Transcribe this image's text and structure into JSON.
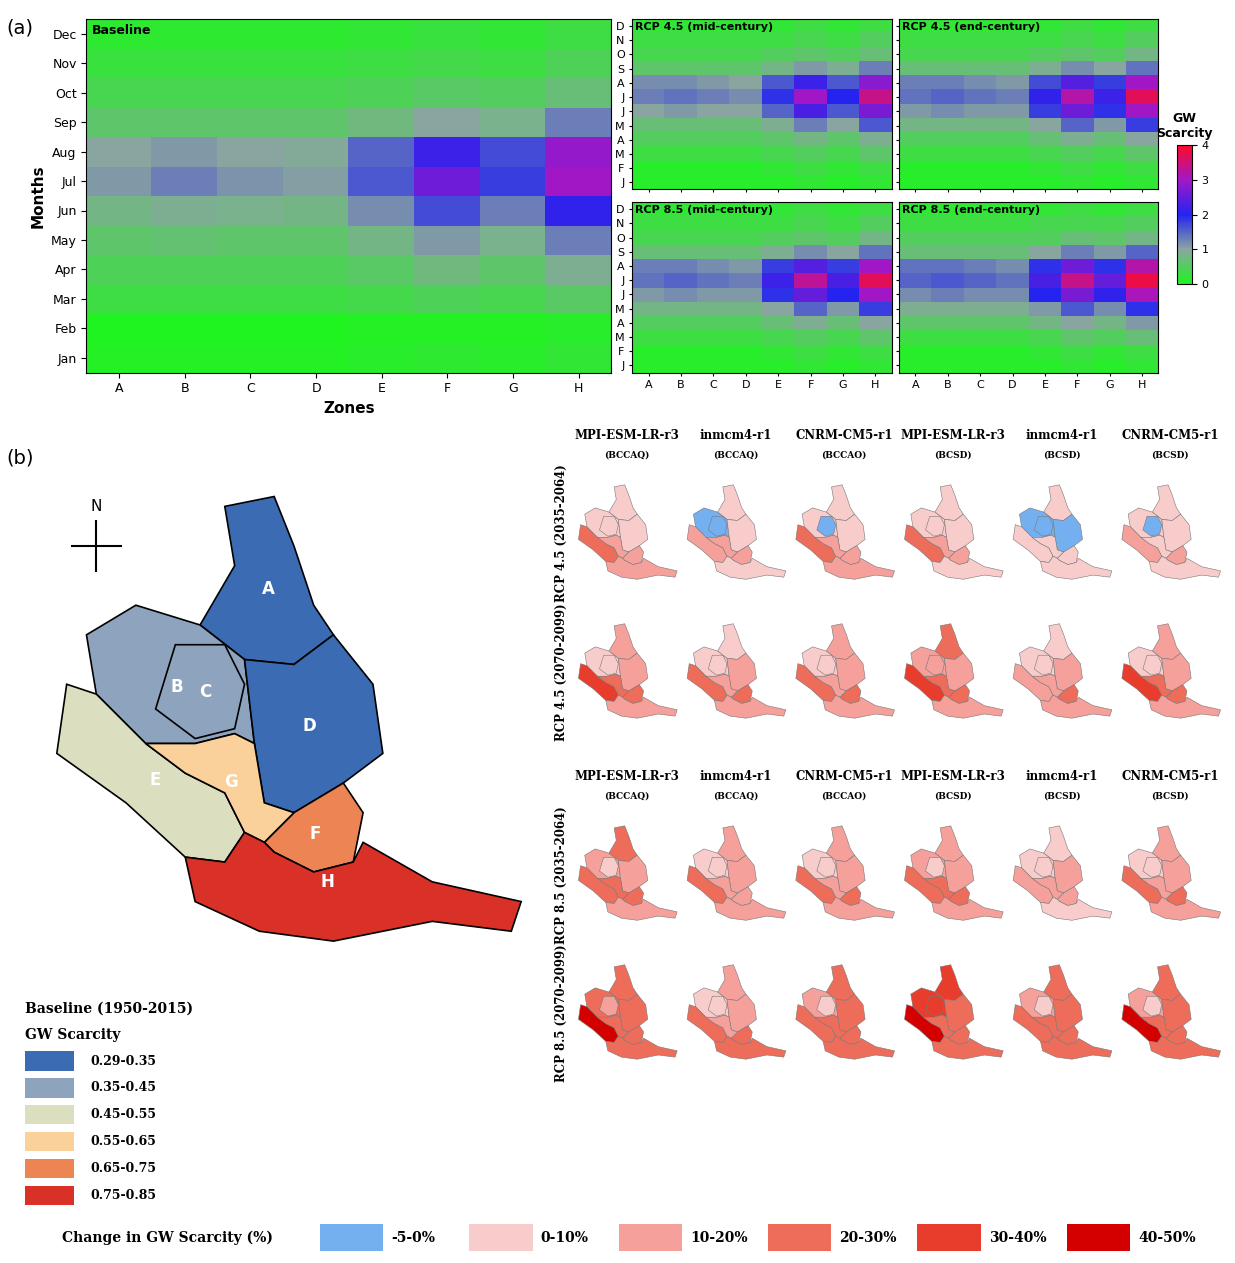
{
  "panel_labels": [
    "(a)",
    "(b)"
  ],
  "chart_data": {
    "type": "heatmap",
    "colorbar": {
      "label": "GW\nScarcity",
      "range": [
        0,
        4
      ],
      "ticks": [
        0,
        1,
        2,
        3,
        4
      ]
    },
    "baseline": {
      "title": "Baseline",
      "xlabel": "Zones",
      "ylabel": "Months",
      "x_categories": [
        "A",
        "B",
        "C",
        "D",
        "E",
        "F",
        "G",
        "H"
      ],
      "y_categories": [
        "Jan",
        "Feb",
        "Mar",
        "Apr",
        "May",
        "Jun",
        "Jul",
        "Aug",
        "Sep",
        "Oct",
        "Nov",
        "Dec"
      ],
      "cells": [
        [
          0.05,
          0.05,
          0.05,
          0.05,
          0.1,
          0.15,
          0.1,
          0.2
        ],
        [
          0.02,
          0.02,
          0.02,
          0.02,
          0.05,
          0.05,
          0.05,
          0.1
        ],
        [
          0.3,
          0.3,
          0.3,
          0.3,
          0.35,
          0.45,
          0.4,
          0.55
        ],
        [
          0.45,
          0.45,
          0.45,
          0.45,
          0.55,
          0.75,
          0.6,
          0.9
        ],
        [
          0.6,
          0.65,
          0.6,
          0.6,
          0.8,
          1.1,
          0.85,
          1.3
        ],
        [
          0.8,
          0.9,
          0.85,
          0.8,
          1.2,
          1.7,
          1.3,
          2.1
        ],
        [
          1.1,
          1.3,
          1.15,
          1.05,
          1.6,
          2.6,
          1.8,
          3.0
        ],
        [
          1.0,
          1.1,
          1.0,
          0.95,
          1.5,
          2.2,
          1.7,
          2.9
        ],
        [
          0.6,
          0.6,
          0.6,
          0.6,
          0.75,
          1.0,
          0.85,
          1.3
        ],
        [
          0.4,
          0.4,
          0.4,
          0.4,
          0.45,
          0.55,
          0.5,
          0.7
        ],
        [
          0.25,
          0.25,
          0.25,
          0.25,
          0.3,
          0.35,
          0.3,
          0.45
        ],
        [
          0.15,
          0.15,
          0.15,
          0.15,
          0.2,
          0.25,
          0.2,
          0.3
        ]
      ]
    },
    "scenario_y_categories": [
      "J",
      "F",
      "M",
      "A",
      "M",
      "J",
      "J",
      "A",
      "S",
      "O",
      "N",
      "D"
    ],
    "scenario_x_categories": [
      "A",
      "B",
      "C",
      "D",
      "E",
      "F",
      "G",
      "H"
    ],
    "scenarios": [
      {
        "title": "RCP 4.5 (mid-century)",
        "cells": [
          [
            0.1,
            0.1,
            0.1,
            0.1,
            0.1,
            0.2,
            0.1,
            0.2
          ],
          [
            0.1,
            0.1,
            0.1,
            0.1,
            0.2,
            0.3,
            0.2,
            0.3
          ],
          [
            0.3,
            0.3,
            0.3,
            0.3,
            0.4,
            0.5,
            0.4,
            0.6
          ],
          [
            0.5,
            0.5,
            0.5,
            0.5,
            0.6,
            0.8,
            0.6,
            0.9
          ],
          [
            0.7,
            0.7,
            0.7,
            0.7,
            0.9,
            1.3,
            1.0,
            1.6
          ],
          [
            1.0,
            1.1,
            1.0,
            1.0,
            1.5,
            2.3,
            1.6,
            2.7
          ],
          [
            1.3,
            1.4,
            1.3,
            1.2,
            1.9,
            3.0,
            2.0,
            3.4
          ],
          [
            1.2,
            1.2,
            1.1,
            1.0,
            1.6,
            2.2,
            1.6,
            2.8
          ],
          [
            0.6,
            0.6,
            0.6,
            0.6,
            0.8,
            1.1,
            0.9,
            1.3
          ],
          [
            0.4,
            0.4,
            0.4,
            0.4,
            0.5,
            0.6,
            0.5,
            0.7
          ],
          [
            0.3,
            0.3,
            0.3,
            0.3,
            0.3,
            0.4,
            0.3,
            0.5
          ],
          [
            0.2,
            0.2,
            0.2,
            0.2,
            0.2,
            0.3,
            0.2,
            0.3
          ]
        ]
      },
      {
        "title": "RCP 4.5 (end-century)",
        "cells": [
          [
            0.1,
            0.1,
            0.1,
            0.1,
            0.1,
            0.2,
            0.1,
            0.2
          ],
          [
            0.1,
            0.1,
            0.1,
            0.1,
            0.2,
            0.3,
            0.2,
            0.3
          ],
          [
            0.3,
            0.3,
            0.3,
            0.3,
            0.4,
            0.5,
            0.4,
            0.6
          ],
          [
            0.5,
            0.5,
            0.5,
            0.5,
            0.7,
            0.9,
            0.7,
            1.0
          ],
          [
            0.8,
            0.8,
            0.8,
            0.8,
            1.0,
            1.5,
            1.1,
            1.8
          ],
          [
            1.1,
            1.2,
            1.1,
            1.1,
            1.8,
            2.6,
            1.9,
            3.0
          ],
          [
            1.4,
            1.5,
            1.4,
            1.3,
            2.1,
            3.2,
            2.2,
            3.7
          ],
          [
            1.3,
            1.3,
            1.2,
            1.1,
            1.7,
            2.4,
            1.8,
            3.0
          ],
          [
            0.7,
            0.7,
            0.7,
            0.7,
            0.9,
            1.2,
            1.0,
            1.4
          ],
          [
            0.4,
            0.4,
            0.4,
            0.4,
            0.5,
            0.6,
            0.5,
            0.8
          ],
          [
            0.3,
            0.3,
            0.3,
            0.3,
            0.3,
            0.4,
            0.3,
            0.5
          ],
          [
            0.2,
            0.2,
            0.2,
            0.2,
            0.2,
            0.3,
            0.2,
            0.3
          ]
        ]
      },
      {
        "title": "RCP 8.5 (mid-century)",
        "cells": [
          [
            0.1,
            0.1,
            0.1,
            0.1,
            0.1,
            0.2,
            0.1,
            0.2
          ],
          [
            0.1,
            0.1,
            0.1,
            0.1,
            0.2,
            0.3,
            0.2,
            0.3
          ],
          [
            0.3,
            0.3,
            0.3,
            0.3,
            0.4,
            0.5,
            0.4,
            0.6
          ],
          [
            0.5,
            0.5,
            0.5,
            0.5,
            0.7,
            0.9,
            0.7,
            1.0
          ],
          [
            0.8,
            0.8,
            0.8,
            0.8,
            1.0,
            1.5,
            1.1,
            1.8
          ],
          [
            1.1,
            1.2,
            1.1,
            1.1,
            1.9,
            2.5,
            2.0,
            3.0
          ],
          [
            1.4,
            1.5,
            1.4,
            1.3,
            2.2,
            3.3,
            2.3,
            3.7
          ],
          [
            1.3,
            1.3,
            1.2,
            1.1,
            1.8,
            2.4,
            1.8,
            3.0
          ],
          [
            0.7,
            0.7,
            0.7,
            0.7,
            0.9,
            1.2,
            1.0,
            1.4
          ],
          [
            0.4,
            0.4,
            0.4,
            0.4,
            0.5,
            0.6,
            0.5,
            0.8
          ],
          [
            0.3,
            0.3,
            0.3,
            0.3,
            0.3,
            0.4,
            0.3,
            0.5
          ],
          [
            0.2,
            0.2,
            0.2,
            0.2,
            0.2,
            0.3,
            0.2,
            0.3
          ]
        ]
      },
      {
        "title": "RCP 8.5 (end-century)",
        "cells": [
          [
            0.1,
            0.1,
            0.1,
            0.1,
            0.1,
            0.2,
            0.1,
            0.2
          ],
          [
            0.1,
            0.1,
            0.1,
            0.1,
            0.2,
            0.3,
            0.2,
            0.3
          ],
          [
            0.3,
            0.3,
            0.3,
            0.3,
            0.4,
            0.6,
            0.5,
            0.7
          ],
          [
            0.6,
            0.6,
            0.6,
            0.6,
            0.8,
            1.0,
            0.8,
            1.1
          ],
          [
            0.9,
            0.9,
            0.9,
            0.9,
            1.1,
            1.6,
            1.2,
            1.9
          ],
          [
            1.2,
            1.3,
            1.2,
            1.2,
            2.0,
            2.7,
            2.1,
            3.1
          ],
          [
            1.5,
            1.6,
            1.5,
            1.4,
            2.3,
            3.4,
            2.5,
            3.8
          ],
          [
            1.4,
            1.4,
            1.3,
            1.2,
            1.9,
            2.6,
            1.9,
            3.2
          ],
          [
            0.7,
            0.7,
            0.7,
            0.7,
            1.0,
            1.3,
            1.1,
            1.5
          ],
          [
            0.5,
            0.5,
            0.5,
            0.5,
            0.5,
            0.7,
            0.6,
            0.8
          ],
          [
            0.3,
            0.3,
            0.3,
            0.3,
            0.4,
            0.4,
            0.4,
            0.5
          ],
          [
            0.2,
            0.2,
            0.2,
            0.2,
            0.2,
            0.3,
            0.2,
            0.3
          ]
        ]
      }
    ]
  },
  "map_data": {
    "north_label": "N",
    "zones": [
      "A",
      "B",
      "C",
      "D",
      "E",
      "F",
      "G",
      "H"
    ],
    "baseline": {
      "title": "Baseline (1950-2015)",
      "subtitle": "GW Scarcity",
      "classes": [
        {
          "label": "0.29-0.35",
          "color": "#3a6bb3"
        },
        {
          "label": "0.35-0.45",
          "color": "#8ea3bd"
        },
        {
          "label": "0.45-0.55",
          "color": "#dcdfbf"
        },
        {
          "label": "0.55-0.65",
          "color": "#fbd19b"
        },
        {
          "label": "0.65-0.75",
          "color": "#ec8454"
        },
        {
          "label": "0.75-0.85",
          "color": "#d93128"
        }
      ],
      "zone_classes": [
        "0.29-0.35",
        "0.35-0.45",
        "0.35-0.45",
        "0.29-0.35",
        "0.45-0.55",
        "0.65-0.75",
        "0.55-0.65",
        "0.75-0.85"
      ]
    },
    "change": {
      "title": "Change in GW Scarcity (%)",
      "classes": [
        {
          "label": "-5-0%",
          "color": "#74b0f0"
        },
        {
          "label": "0-10%",
          "color": "#f9cccc"
        },
        {
          "label": "10-20%",
          "color": "#f5a09a"
        },
        {
          "label": "20-30%",
          "color": "#ee6c5a"
        },
        {
          "label": "30-40%",
          "color": "#e83c2c"
        },
        {
          "label": "40-50%",
          "color": "#d40000"
        }
      ],
      "models": [
        {
          "name": "MPI-ESM-LR-r3",
          "method": "(BCCAQ)"
        },
        {
          "name": "inmcm4-r1",
          "method": "(BCCAQ)"
        },
        {
          "name": "CNRM-CM5-r1",
          "method": "(BCCAO)"
        },
        {
          "name": "MPI-ESM-LR-r3",
          "method": "(BCSD)"
        },
        {
          "name": "inmcm4-r1",
          "method": "(BCSD)"
        },
        {
          "name": "CNRM-CM5-r1",
          "method": "(BCSD)"
        }
      ],
      "blocks": [
        {
          "rows": [
            {
              "label": "RCP 4.5 (2035-2064)",
              "maps": [
                [
                  "0-10%",
                  "0-10%",
                  "0-10%",
                  "0-10%",
                  "20-30%",
                  "10-20%",
                  "10-20%",
                  "10-20%"
                ],
                [
                  "0-10%",
                  "-5-0%",
                  "-5-0%",
                  "0-10%",
                  "10-20%",
                  "10-20%",
                  "10-20%",
                  "0-10%"
                ],
                [
                  "0-10%",
                  "0-10%",
                  "-5-0%",
                  "0-10%",
                  "20-30%",
                  "10-20%",
                  "10-20%",
                  "10-20%"
                ],
                [
                  "0-10%",
                  "0-10%",
                  "0-10%",
                  "0-10%",
                  "20-30%",
                  "10-20%",
                  "10-20%",
                  "0-10%"
                ],
                [
                  "0-10%",
                  "-5-0%",
                  "-5-0%",
                  "-5-0%",
                  "0-10%",
                  "0-10%",
                  "0-10%",
                  "0-10%"
                ],
                [
                  "0-10%",
                  "0-10%",
                  "-5-0%",
                  "0-10%",
                  "10-20%",
                  "10-20%",
                  "0-10%",
                  "0-10%"
                ]
              ]
            },
            {
              "label": "RCP 4.5 (2070-2099)",
              "maps": [
                [
                  "10-20%",
                  "0-10%",
                  "0-10%",
                  "10-20%",
                  "30-40%",
                  "20-30%",
                  "20-30%",
                  "10-20%"
                ],
                [
                  "0-10%",
                  "0-10%",
                  "0-10%",
                  "10-20%",
                  "20-30%",
                  "20-30%",
                  "10-20%",
                  "10-20%"
                ],
                [
                  "10-20%",
                  "0-10%",
                  "0-10%",
                  "10-20%",
                  "20-30%",
                  "20-30%",
                  "10-20%",
                  "10-20%"
                ],
                [
                  "20-30%",
                  "10-20%",
                  "10-20%",
                  "10-20%",
                  "30-40%",
                  "20-30%",
                  "20-30%",
                  "10-20%"
                ],
                [
                  "0-10%",
                  "0-10%",
                  "0-10%",
                  "10-20%",
                  "10-20%",
                  "20-30%",
                  "10-20%",
                  "10-20%"
                ],
                [
                  "10-20%",
                  "0-10%",
                  "0-10%",
                  "10-20%",
                  "30-40%",
                  "20-30%",
                  "20-30%",
                  "10-20%"
                ]
              ]
            }
          ]
        },
        {
          "rows": [
            {
              "label": "RCP 8.5 (2035-2064)",
              "maps": [
                [
                  "20-30%",
                  "10-20%",
                  "0-10%",
                  "10-20%",
                  "20-30%",
                  "20-30%",
                  "20-30%",
                  "10-20%"
                ],
                [
                  "10-20%",
                  "0-10%",
                  "0-10%",
                  "10-20%",
                  "20-30%",
                  "10-20%",
                  "10-20%",
                  "10-20%"
                ],
                [
                  "10-20%",
                  "0-10%",
                  "0-10%",
                  "10-20%",
                  "20-30%",
                  "20-30%",
                  "10-20%",
                  "10-20%"
                ],
                [
                  "10-20%",
                  "10-20%",
                  "0-10%",
                  "10-20%",
                  "20-30%",
                  "20-30%",
                  "20-30%",
                  "10-20%"
                ],
                [
                  "0-10%",
                  "0-10%",
                  "0-10%",
                  "10-20%",
                  "10-20%",
                  "10-20%",
                  "10-20%",
                  "0-10%"
                ],
                [
                  "10-20%",
                  "0-10%",
                  "0-10%",
                  "10-20%",
                  "20-30%",
                  "20-30%",
                  "10-20%",
                  "10-20%"
                ]
              ]
            },
            {
              "label": "RCP 8.5 (2070-2099)",
              "maps": [
                [
                  "20-30%",
                  "20-30%",
                  "10-20%",
                  "20-30%",
                  "40-50%",
                  "20-30%",
                  "20-30%",
                  "20-30%"
                ],
                [
                  "10-20%",
                  "0-10%",
                  "0-10%",
                  "10-20%",
                  "20-30%",
                  "20-30%",
                  "10-20%",
                  "20-30%"
                ],
                [
                  "20-30%",
                  "10-20%",
                  "0-10%",
                  "20-30%",
                  "20-30%",
                  "20-30%",
                  "20-30%",
                  "20-30%"
                ],
                [
                  "30-40%",
                  "30-40%",
                  "30-40%",
                  "20-30%",
                  "40-50%",
                  "20-30%",
                  "20-30%",
                  "20-30%"
                ],
                [
                  "20-30%",
                  "10-20%",
                  "0-10%",
                  "20-30%",
                  "20-30%",
                  "20-30%",
                  "20-30%",
                  "20-30%"
                ],
                [
                  "20-30%",
                  "10-20%",
                  "0-10%",
                  "20-30%",
                  "40-50%",
                  "20-30%",
                  "20-30%",
                  "20-30%"
                ]
              ]
            }
          ]
        }
      ]
    }
  }
}
